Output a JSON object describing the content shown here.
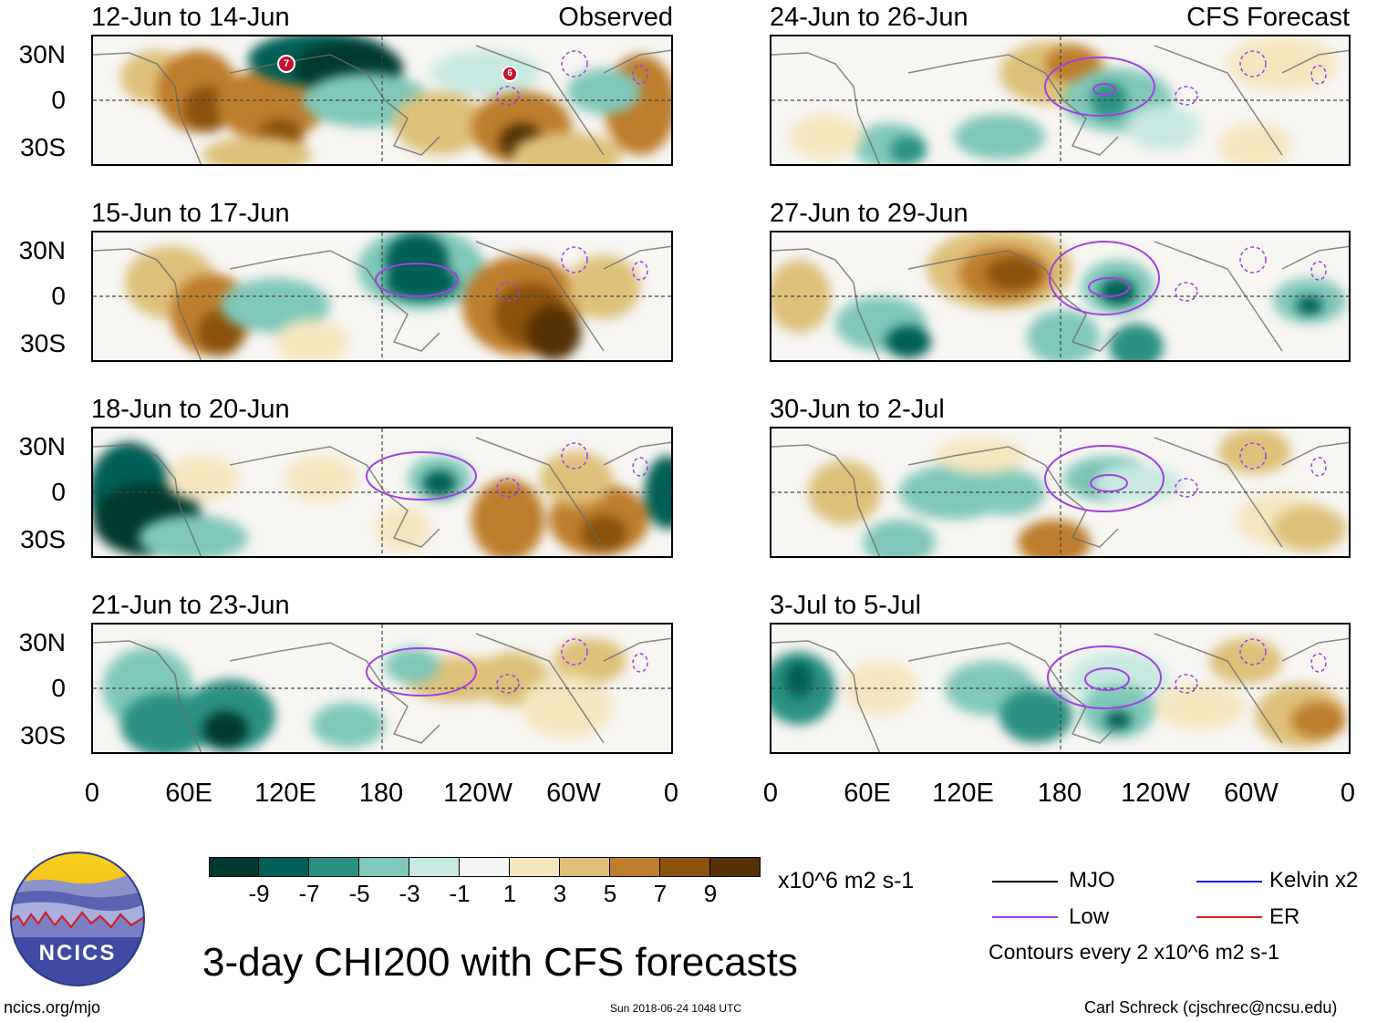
{
  "colors": {
    "scale": [
      "#01392e",
      "#005f56",
      "#2b9083",
      "#80c8b9",
      "#c7e9e1",
      "#f4f4f4",
      "#f5e6be",
      "#dec07a",
      "#bd7e2d",
      "#8a520b",
      "#553205"
    ],
    "mjo": "#000000",
    "low": "#a140e3",
    "kelvin": "#1f1fd6",
    "er": "#de1e1e",
    "grid": "#444444",
    "coast": "#6b6b6b"
  },
  "panels": [
    {
      "title": "12-Jun to 14-Jun",
      "tag": "Observed"
    },
    {
      "title": "24-Jun to 26-Jun",
      "tag": "CFS Forecast"
    },
    {
      "title": "15-Jun to 17-Jun",
      "tag": ""
    },
    {
      "title": "27-Jun to 29-Jun",
      "tag": ""
    },
    {
      "title": "18-Jun to 20-Jun",
      "tag": ""
    },
    {
      "title": "30-Jun to 2-Jul",
      "tag": ""
    },
    {
      "title": "21-Jun to 23-Jun",
      "tag": ""
    },
    {
      "title": "3-Jul to 5-Jul",
      "tag": ""
    }
  ],
  "lat_labels": [
    "30N",
    "0",
    "30S"
  ],
  "lon_labels": [
    "0",
    "60E",
    "120E",
    "180",
    "120W",
    "60W",
    "0"
  ],
  "colorbar": {
    "ticks": [
      "-9",
      "-7",
      "-5",
      "-3",
      "-1",
      "1",
      "3",
      "5",
      "7",
      "9"
    ],
    "units": "x10^6 m2 s-1"
  },
  "legend": {
    "mjo": "MJO",
    "low": "Low",
    "kelvin": "Kelvin x2",
    "er": "ER",
    "contours": "Contours every 2 x10^6 m2 s-1"
  },
  "storm_markers": [
    "7",
    "6"
  ],
  "footer": {
    "logo_text": "NCICS",
    "title": "3-day CHI200 with CFS forecasts",
    "url": "ncics.org/mjo",
    "timestamp": "Sun 2018-06-24 1048 UTC",
    "author": "Carl Schreck (cjschrec@ncsu.edu)"
  }
}
